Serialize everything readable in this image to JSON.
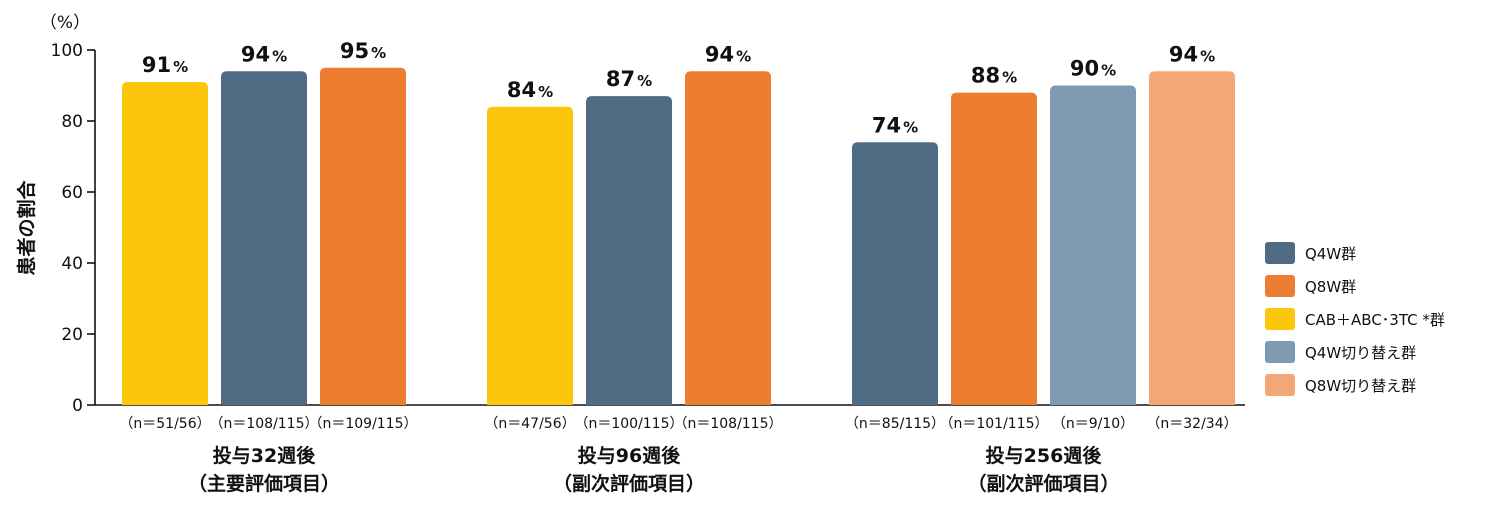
{
  "chart_data": {
    "type": "bar",
    "ylabel": "患者の割合",
    "y_unit": "（%）",
    "ylim": [
      0,
      100
    ],
    "yticks": [
      "0",
      "20",
      "40",
      "60",
      "80",
      "100"
    ],
    "value_suffix": "%",
    "grid": false,
    "legend_position": "right",
    "legend": [
      {
        "name": "Q4W群",
        "color": "#506c84"
      },
      {
        "name": "Q8W群",
        "color": "#ed7d31"
      },
      {
        "name": "CAB＋ABC･3TC *群",
        "color": "#fcc70a"
      },
      {
        "name": "Q4W切り替え群",
        "color": "#7f9bb3"
      },
      {
        "name": "Q8W切り替え群",
        "color": "#f2a875"
      }
    ],
    "groups": [
      {
        "label_line1": "投与32週後",
        "label_line2": "（主要評価項目）",
        "bars": [
          {
            "series": "CAB＋ABC･3TC *群",
            "value": 91,
            "label": "91",
            "n": "（n＝51/56）"
          },
          {
            "series": "Q4W群",
            "value": 94,
            "label": "94",
            "n": "（n＝108/115）"
          },
          {
            "series": "Q8W群",
            "value": 95,
            "label": "95",
            "n": "（n＝109/115）"
          }
        ]
      },
      {
        "label_line1": "投与96週後",
        "label_line2": "（副次評価項目）",
        "bars": [
          {
            "series": "CAB＋ABC･3TC *群",
            "value": 84,
            "label": "84",
            "n": "（n＝47/56）"
          },
          {
            "series": "Q4W群",
            "value": 87,
            "label": "87",
            "n": "（n＝100/115）"
          },
          {
            "series": "Q8W群",
            "value": 94,
            "label": "94",
            "n": "（n＝108/115）"
          }
        ]
      },
      {
        "label_line1": "投与256週後",
        "label_line2": "（副次評価項目）",
        "bars": [
          {
            "series": "Q4W群",
            "value": 74,
            "label": "74",
            "n": "（n＝85/115）"
          },
          {
            "series": "Q8W群",
            "value": 88,
            "label": "88",
            "n": "（n＝101/115）"
          },
          {
            "series": "Q4W切り替え群",
            "value": 90,
            "label": "90",
            "n": "（n＝9/10）"
          },
          {
            "series": "Q8W切り替え群",
            "value": 94,
            "label": "94",
            "n": "（n＝32/34）"
          }
        ]
      }
    ]
  }
}
